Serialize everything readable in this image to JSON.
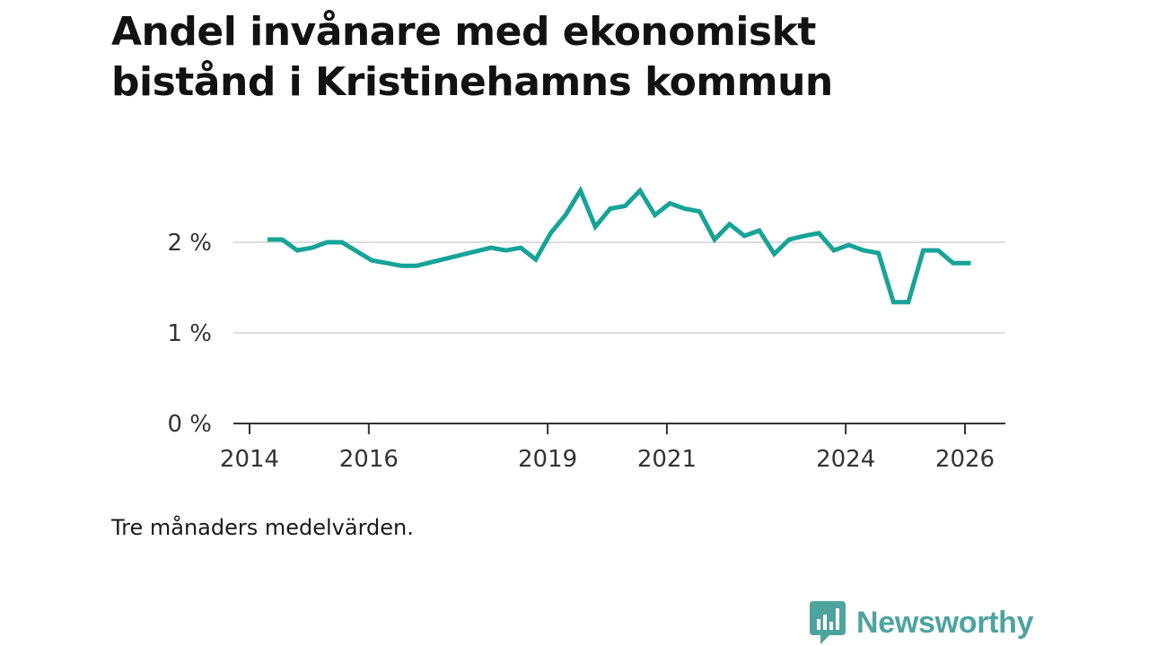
{
  "chart_data": {
    "type": "line",
    "title_lines": [
      "Andel invånare med ekonomiskt",
      "bistånd i Kristinehamns kommun"
    ],
    "note": "Tre månaders medelvärden.",
    "y_unit": "%",
    "ylim": [
      0,
      2.6
    ],
    "y_ticks": [
      {
        "value": 0,
        "label": "0 %"
      },
      {
        "value": 1,
        "label": "1 %"
      },
      {
        "value": 2,
        "label": "2 %"
      }
    ],
    "xlim": [
      2014,
      2026.5
    ],
    "x_ticks": [
      {
        "value": 2014,
        "label": "2014"
      },
      {
        "value": 2016,
        "label": "2016"
      },
      {
        "value": 2019,
        "label": "2019"
      },
      {
        "value": 2021,
        "label": "2021"
      },
      {
        "value": 2024,
        "label": "2024"
      },
      {
        "value": 2026,
        "label": "2026"
      }
    ],
    "grid": true,
    "color": "#17a398",
    "series": [
      {
        "name": "Andel invånare med ekonomiskt bistånd",
        "points": [
          [
            2014.3,
            2.03
          ],
          [
            2014.55,
            2.03
          ],
          [
            2014.8,
            1.91
          ],
          [
            2015.05,
            1.94
          ],
          [
            2015.3,
            2.0
          ],
          [
            2015.55,
            2.0
          ],
          [
            2015.8,
            1.9
          ],
          [
            2016.05,
            1.8
          ],
          [
            2016.3,
            1.77
          ],
          [
            2016.55,
            1.74
          ],
          [
            2016.8,
            1.74
          ],
          [
            2017.05,
            1.78
          ],
          [
            2017.3,
            1.82
          ],
          [
            2017.55,
            1.86
          ],
          [
            2017.8,
            1.9
          ],
          [
            2018.05,
            1.94
          ],
          [
            2018.3,
            1.91
          ],
          [
            2018.55,
            1.94
          ],
          [
            2018.8,
            1.81
          ],
          [
            2019.05,
            2.1
          ],
          [
            2019.3,
            2.3
          ],
          [
            2019.55,
            2.57
          ],
          [
            2019.8,
            2.17
          ],
          [
            2020.05,
            2.37
          ],
          [
            2020.3,
            2.4
          ],
          [
            2020.55,
            2.57
          ],
          [
            2020.8,
            2.3
          ],
          [
            2021.05,
            2.43
          ],
          [
            2021.3,
            2.37
          ],
          [
            2021.55,
            2.34
          ],
          [
            2021.8,
            2.03
          ],
          [
            2022.05,
            2.2
          ],
          [
            2022.3,
            2.07
          ],
          [
            2022.55,
            2.13
          ],
          [
            2022.8,
            1.87
          ],
          [
            2023.05,
            2.03
          ],
          [
            2023.3,
            2.07
          ],
          [
            2023.55,
            2.1
          ],
          [
            2023.8,
            1.91
          ],
          [
            2024.05,
            1.97
          ],
          [
            2024.3,
            1.91
          ],
          [
            2024.55,
            1.88
          ],
          [
            2024.8,
            1.34
          ],
          [
            2025.05,
            1.34
          ],
          [
            2025.3,
            1.91
          ],
          [
            2025.55,
            1.91
          ],
          [
            2025.8,
            1.77
          ],
          [
            2026.1,
            1.77
          ]
        ]
      }
    ]
  },
  "brand": {
    "name": "Newsworthy",
    "icon": "bar-chart-speech-bubble-icon",
    "color": "#4ea39f"
  }
}
